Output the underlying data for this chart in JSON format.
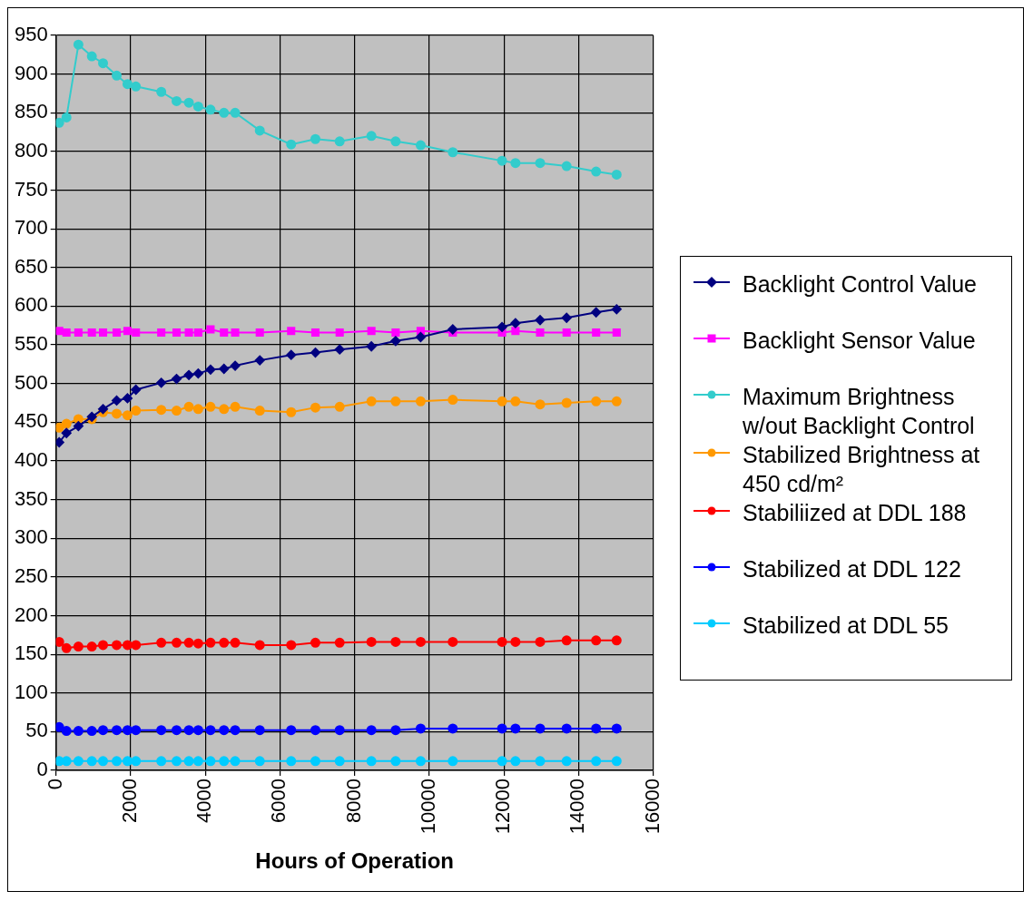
{
  "chart_data": {
    "type": "line",
    "xlabel": "Hours of Operation",
    "x": [
      85,
      280,
      600,
      960,
      1260,
      1625,
      1915,
      2140,
      2820,
      3230,
      3560,
      3810,
      4140,
      4500,
      4800,
      5460,
      6300,
      6950,
      7600,
      8450,
      9100,
      9770,
      10630,
      11950,
      12310,
      12970,
      13680,
      14470,
      15020
    ],
    "series": [
      {
        "name": "Backlight Control Value",
        "color": "#000080",
        "marker": "diamond",
        "values": [
          424,
          436,
          445,
          457,
          467,
          478,
          481,
          492,
          501,
          506,
          511,
          513,
          518,
          519,
          523,
          530,
          537,
          540,
          544,
          548,
          555,
          560,
          570,
          573,
          578,
          582,
          585,
          592,
          596
        ]
      },
      {
        "name": "Backlight Sensor Value",
        "color": "#ff00ff",
        "marker": "square",
        "values": [
          568,
          566,
          566,
          566,
          566,
          566,
          568,
          566,
          566,
          566,
          566,
          566,
          570,
          566,
          566,
          566,
          568,
          566,
          566,
          568,
          566,
          568,
          566,
          566,
          568,
          566,
          566,
          566,
          566
        ]
      },
      {
        "name": "Maximum Brightness w/out Backlight Control",
        "color": "#33cccc",
        "marker": "circle",
        "values": [
          837,
          844,
          938,
          923,
          914,
          898,
          887,
          884,
          877,
          865,
          863,
          858,
          854,
          850,
          850,
          827,
          809,
          816,
          813,
          820,
          813,
          808,
          799,
          788,
          785,
          785,
          781,
          774,
          770
        ]
      },
      {
        "name": "Stabilized Brightness at 450 cd/m²",
        "color": "#ff9900",
        "marker": "circle",
        "values": [
          443,
          448,
          454,
          454,
          463,
          461,
          459,
          465,
          466,
          465,
          470,
          467,
          470,
          467,
          470,
          465,
          463,
          469,
          470,
          477,
          477,
          477,
          479,
          477,
          477,
          473,
          475,
          477,
          477
        ]
      },
      {
        "name": "Stabiliized at DDL 188",
        "color": "#ff0000",
        "marker": "circle",
        "values": [
          166,
          158,
          160,
          160,
          162,
          162,
          162,
          162,
          165,
          165,
          165,
          164,
          165,
          165,
          165,
          162,
          162,
          165,
          165,
          166,
          166,
          166,
          166,
          166,
          166,
          166,
          168,
          168,
          168
        ]
      },
      {
        "name": "Stabilized at DDL 122",
        "color": "#0000ff",
        "marker": "circle",
        "values": [
          56,
          51,
          51,
          51,
          52,
          52,
          52,
          52,
          52,
          52,
          52,
          52,
          52,
          52,
          52,
          52,
          52,
          52,
          52,
          52,
          52,
          54,
          54,
          54,
          54,
          54,
          54,
          54,
          54
        ]
      },
      {
        "name": "Stabilized at DDL 55",
        "color": "#00ccff",
        "marker": "circle",
        "values": [
          12,
          12,
          12,
          12,
          12,
          12,
          12,
          12,
          12,
          12,
          12,
          12,
          12,
          12,
          12,
          12,
          12,
          12,
          12,
          12,
          12,
          12,
          12,
          12,
          12,
          12,
          12,
          12,
          12
        ]
      }
    ],
    "xlim": [
      0,
      16000
    ],
    "xticks": [
      0,
      2000,
      4000,
      6000,
      8000,
      10000,
      12000,
      14000,
      16000
    ],
    "ylim": [
      0,
      950
    ],
    "yticks": [
      0,
      50,
      100,
      150,
      200,
      250,
      300,
      350,
      400,
      450,
      500,
      550,
      600,
      650,
      700,
      750,
      800,
      850,
      900,
      950
    ],
    "grid": true,
    "legend": "right"
  }
}
